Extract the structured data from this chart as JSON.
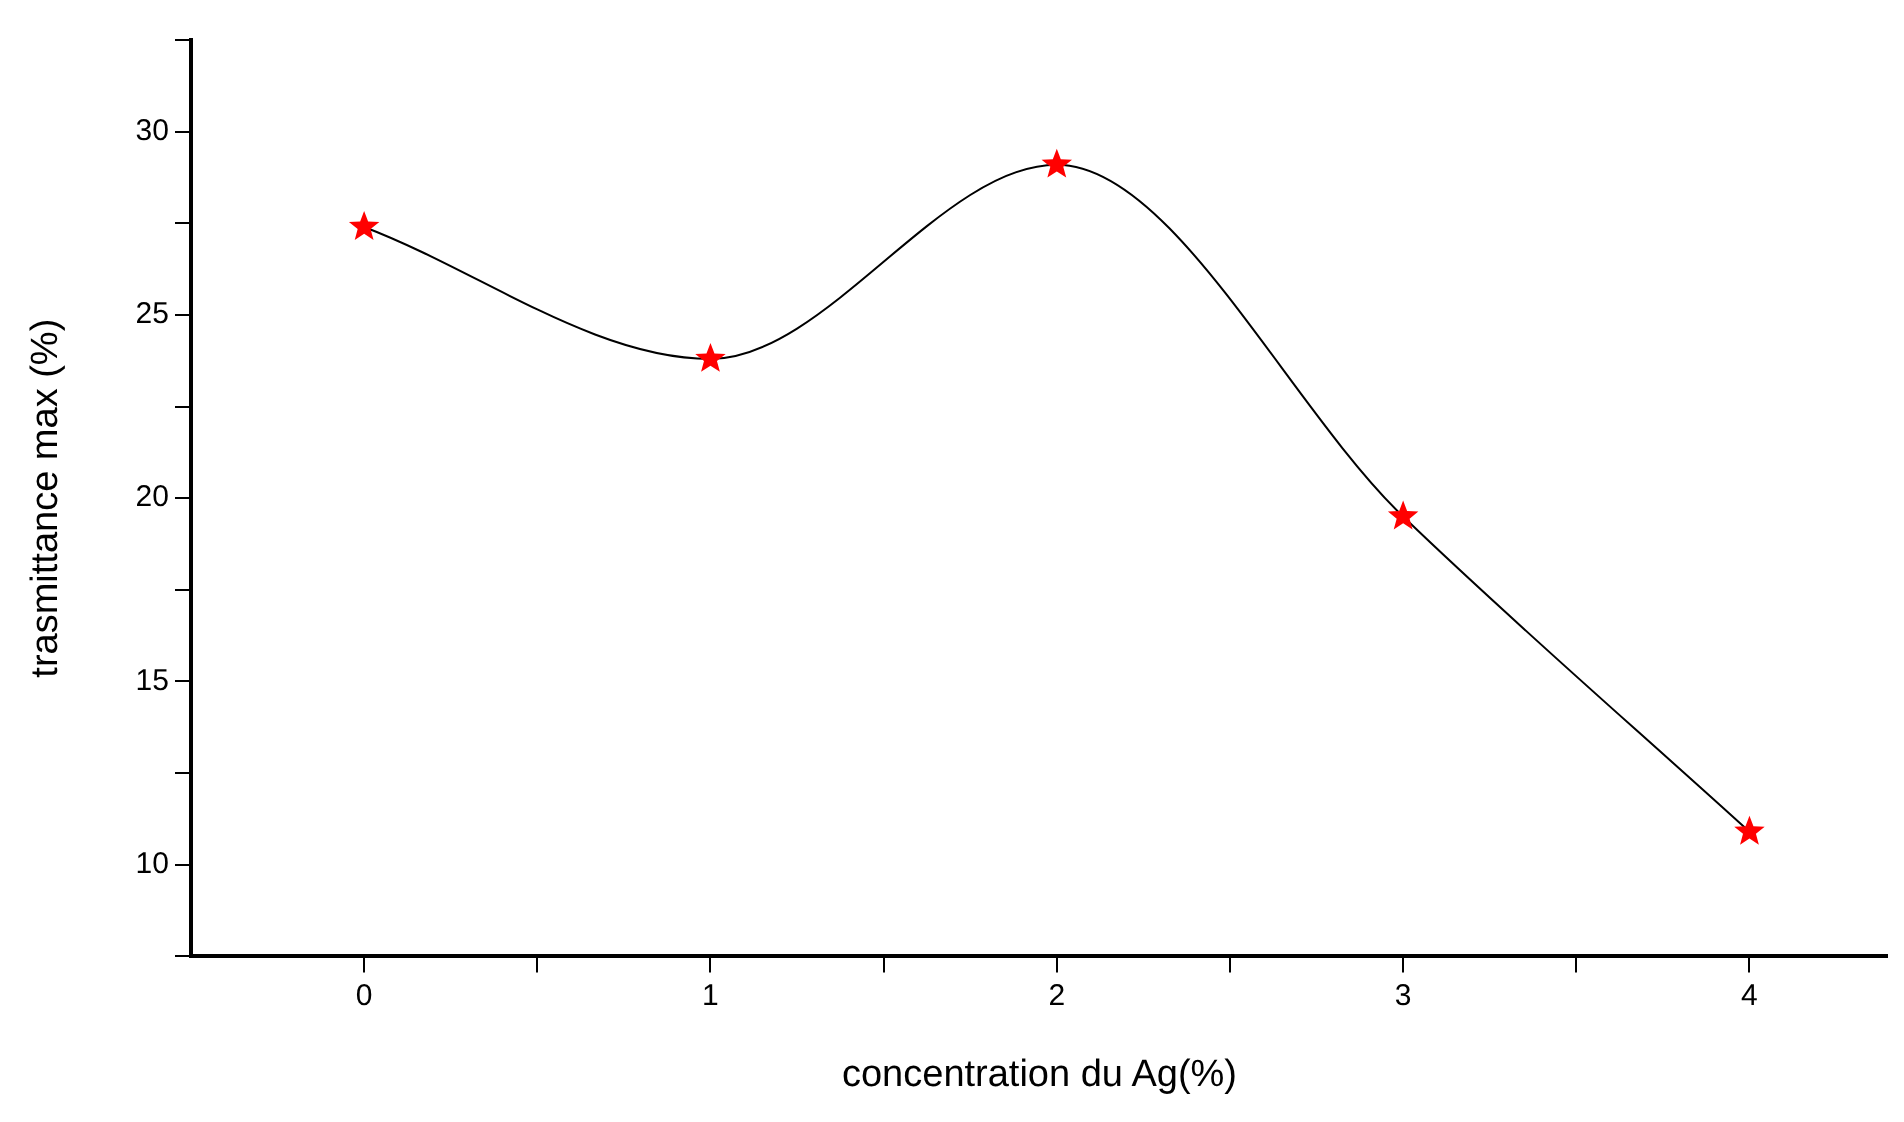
{
  "chart_data": {
    "type": "line",
    "xlabel": "concentration du Ag(%)",
    "ylabel": "trasmittance max (%)",
    "x": [
      0,
      1,
      2,
      3,
      4
    ],
    "series": [
      {
        "color": "#ff0000",
        "values": [
          27.4,
          23.8,
          29.1,
          19.5,
          10.9
        ]
      }
    ],
    "xlim": [
      -0.5,
      4.4
    ],
    "xticks": [
      0,
      {
        "value": 0.5,
        "label": null
      },
      1,
      {
        "value": 1.5,
        "label": null
      },
      2,
      {
        "value": 2.5,
        "label": null
      },
      3,
      {
        "value": 3.5,
        "label": null
      },
      4
    ],
    "ylim": [
      7.5,
      32.5
    ],
    "yticks": [
      {
        "value": 7.5,
        "label": null
      },
      10,
      {
        "value": 12.5,
        "label": null
      },
      15,
      {
        "value": 17.5,
        "label": null
      },
      20,
      {
        "value": 22.5,
        "label": null
      },
      25,
      {
        "value": 27.5,
        "label": null
      },
      30,
      {
        "value": 32.5,
        "label": null
      }
    ],
    "grid": false,
    "legend": false,
    "marker": "star",
    "line_style": "solid"
  }
}
